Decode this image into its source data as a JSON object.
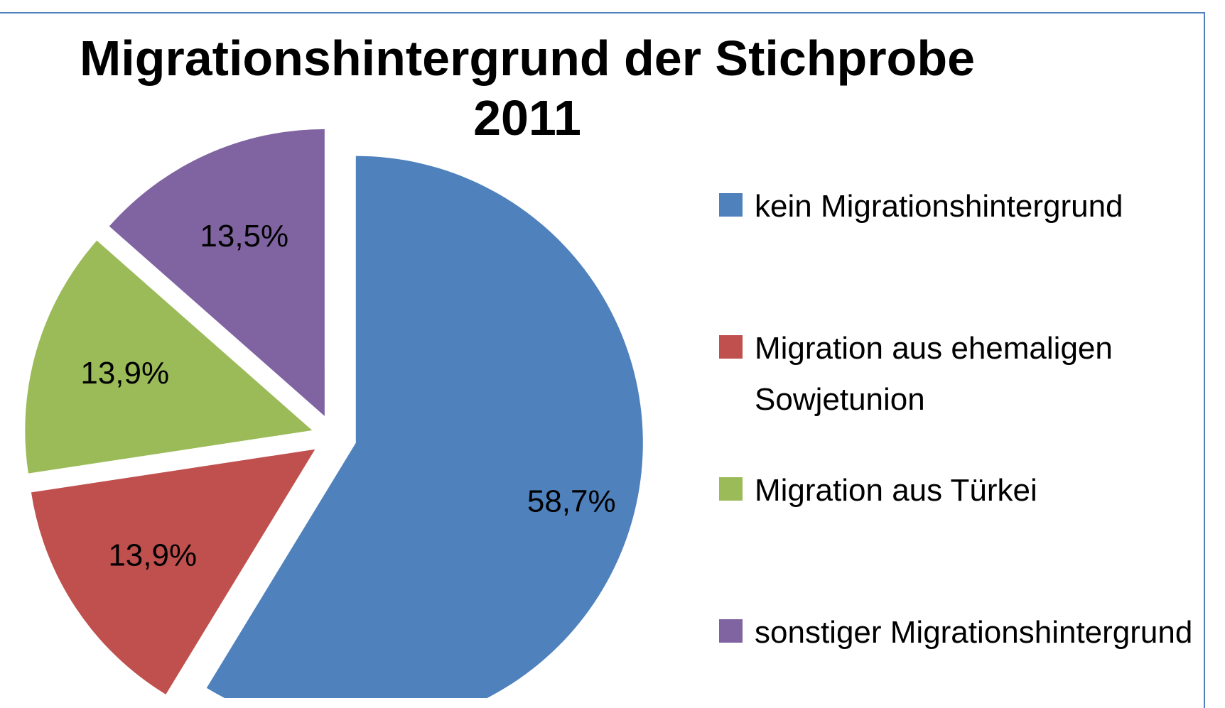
{
  "chart_data": {
    "type": "pie",
    "title": "Migrationshintergrund der Stichprobe 2011",
    "categories": [
      "kein Migrationshintergrund",
      "Migration aus ehemaligen Sowjetunion",
      "Migration aus Türkei",
      "sonstiger Migrationshintergrund"
    ],
    "values": [
      58.7,
      13.9,
      13.9,
      13.5
    ],
    "value_labels": [
      "58,7%",
      "13,9%",
      "13,9%",
      "13,5%"
    ],
    "colors": [
      "#4f81bd",
      "#c0504d",
      "#9bbb59",
      "#8064a2"
    ],
    "legend": "right"
  }
}
